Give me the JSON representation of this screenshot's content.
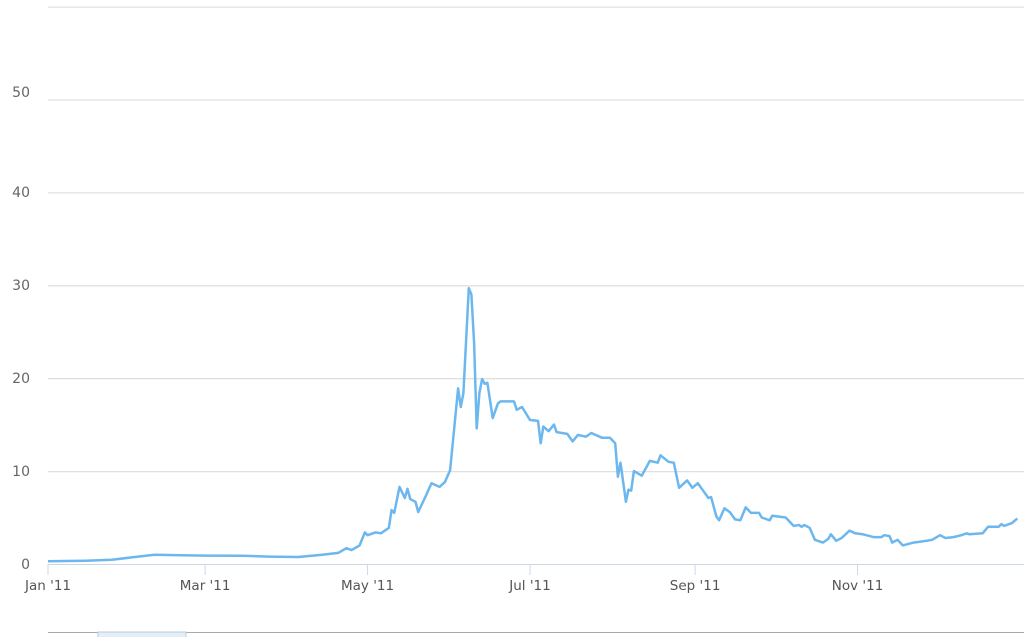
{
  "chart_data": {
    "type": "line",
    "title": "",
    "xlabel": "",
    "ylabel": "",
    "ylim": [
      0,
      60
    ],
    "xlim": [
      "2011-01-01",
      "2011-12-31"
    ],
    "grid": true,
    "legend": "none",
    "line_color": "#6cb8ee",
    "y_ticks": [
      "0",
      "10",
      "20",
      "30",
      "40",
      "50"
    ],
    "x_ticks": [
      {
        "date": "2011-01-01",
        "label": "Jan '11"
      },
      {
        "date": "2011-03-01",
        "label": "Mar '11"
      },
      {
        "date": "2011-05-01",
        "label": "May '11"
      },
      {
        "date": "2011-07-01",
        "label": "Jul '11"
      },
      {
        "date": "2011-09-01",
        "label": "Sep '11"
      },
      {
        "date": "2011-11-01",
        "label": "Nov '11"
      }
    ],
    "series": [
      {
        "points": [
          [
            "2011-01-01",
            0.3
          ],
          [
            "2011-01-15",
            0.35
          ],
          [
            "2011-01-25",
            0.45
          ],
          [
            "2011-02-01",
            0.7
          ],
          [
            "2011-02-10",
            1.0
          ],
          [
            "2011-02-20",
            0.95
          ],
          [
            "2011-03-01",
            0.9
          ],
          [
            "2011-03-15",
            0.88
          ],
          [
            "2011-03-25",
            0.8
          ],
          [
            "2011-04-05",
            0.75
          ],
          [
            "2011-04-14",
            1.0
          ],
          [
            "2011-04-20",
            1.2
          ],
          [
            "2011-04-23",
            1.7
          ],
          [
            "2011-04-25",
            1.5
          ],
          [
            "2011-04-28",
            2.0
          ],
          [
            "2011-04-30",
            3.4
          ],
          [
            "2011-05-01",
            3.1
          ],
          [
            "2011-05-04",
            3.4
          ],
          [
            "2011-05-06",
            3.3
          ],
          [
            "2011-05-09",
            3.9
          ],
          [
            "2011-05-10",
            5.8
          ],
          [
            "2011-05-11",
            5.5
          ],
          [
            "2011-05-13",
            8.3
          ],
          [
            "2011-05-15",
            7.1
          ],
          [
            "2011-05-16",
            8.1
          ],
          [
            "2011-05-17",
            7.0
          ],
          [
            "2011-05-19",
            6.7
          ],
          [
            "2011-05-20",
            5.6
          ],
          [
            "2011-05-23",
            7.4
          ],
          [
            "2011-05-25",
            8.7
          ],
          [
            "2011-05-28",
            8.3
          ],
          [
            "2011-05-30",
            8.8
          ],
          [
            "2011-06-01",
            10.1
          ],
          [
            "2011-06-04",
            18.9
          ],
          [
            "2011-06-05",
            16.9
          ],
          [
            "2011-06-06",
            18.4
          ],
          [
            "2011-06-08",
            29.7
          ],
          [
            "2011-06-09",
            29.0
          ],
          [
            "2011-06-10",
            23.8
          ],
          [
            "2011-06-11",
            14.6
          ],
          [
            "2011-06-12",
            18.4
          ],
          [
            "2011-06-13",
            19.9
          ],
          [
            "2011-06-14",
            19.4
          ],
          [
            "2011-06-15",
            19.5
          ],
          [
            "2011-06-17",
            15.7
          ],
          [
            "2011-06-19",
            17.3
          ],
          [
            "2011-06-20",
            17.5
          ],
          [
            "2011-06-25",
            17.5
          ],
          [
            "2011-06-26",
            16.6
          ],
          [
            "2011-06-28",
            16.9
          ],
          [
            "2011-07-01",
            15.5
          ],
          [
            "2011-07-04",
            15.4
          ],
          [
            "2011-07-05",
            13.0
          ],
          [
            "2011-07-06",
            14.8
          ],
          [
            "2011-07-08",
            14.3
          ],
          [
            "2011-07-10",
            15.0
          ],
          [
            "2011-07-11",
            14.2
          ],
          [
            "2011-07-15",
            14.0
          ],
          [
            "2011-07-17",
            13.2
          ],
          [
            "2011-07-19",
            13.9
          ],
          [
            "2011-07-22",
            13.7
          ],
          [
            "2011-07-24",
            14.1
          ],
          [
            "2011-07-28",
            13.6
          ],
          [
            "2011-07-31",
            13.6
          ],
          [
            "2011-08-02",
            13.0
          ],
          [
            "2011-08-03",
            9.4
          ],
          [
            "2011-08-04",
            10.9
          ],
          [
            "2011-08-06",
            6.7
          ],
          [
            "2011-08-07",
            8.0
          ],
          [
            "2011-08-08",
            7.9
          ],
          [
            "2011-08-09",
            10.0
          ],
          [
            "2011-08-12",
            9.5
          ],
          [
            "2011-08-15",
            11.1
          ],
          [
            "2011-08-18",
            10.9
          ],
          [
            "2011-08-19",
            11.7
          ],
          [
            "2011-08-22",
            11.0
          ],
          [
            "2011-08-24",
            10.9
          ],
          [
            "2011-08-26",
            8.2
          ],
          [
            "2011-08-29",
            9.0
          ],
          [
            "2011-08-31",
            8.2
          ],
          [
            "2011-09-02",
            8.7
          ],
          [
            "2011-09-06",
            7.1
          ],
          [
            "2011-09-07",
            7.2
          ],
          [
            "2011-09-09",
            5.1
          ],
          [
            "2011-09-10",
            4.7
          ],
          [
            "2011-09-12",
            6.0
          ],
          [
            "2011-09-14",
            5.6
          ],
          [
            "2011-09-16",
            4.8
          ],
          [
            "2011-09-18",
            4.7
          ],
          [
            "2011-09-20",
            6.1
          ],
          [
            "2011-09-22",
            5.5
          ],
          [
            "2011-09-25",
            5.5
          ],
          [
            "2011-09-26",
            5.0
          ],
          [
            "2011-09-29",
            4.7
          ],
          [
            "2011-09-30",
            5.2
          ],
          [
            "2011-10-05",
            5.0
          ],
          [
            "2011-10-08",
            4.1
          ],
          [
            "2011-10-10",
            4.2
          ],
          [
            "2011-10-11",
            4.0
          ],
          [
            "2011-10-12",
            4.2
          ],
          [
            "2011-10-14",
            3.9
          ],
          [
            "2011-10-16",
            2.6
          ],
          [
            "2011-10-19",
            2.3
          ],
          [
            "2011-10-21",
            2.7
          ],
          [
            "2011-10-22",
            3.2
          ],
          [
            "2011-10-24",
            2.5
          ],
          [
            "2011-10-26",
            2.8
          ],
          [
            "2011-10-29",
            3.6
          ],
          [
            "2011-10-31",
            3.3
          ],
          [
            "2011-11-03",
            3.2
          ],
          [
            "2011-11-07",
            2.9
          ],
          [
            "2011-11-10",
            2.9
          ],
          [
            "2011-11-11",
            3.1
          ],
          [
            "2011-11-13",
            3.0
          ],
          [
            "2011-11-14",
            2.3
          ],
          [
            "2011-11-16",
            2.6
          ],
          [
            "2011-11-18",
            2.0
          ],
          [
            "2011-11-22",
            2.3
          ],
          [
            "2011-11-27",
            2.5
          ],
          [
            "2011-11-29",
            2.6
          ],
          [
            "2011-12-02",
            3.1
          ],
          [
            "2011-12-04",
            2.8
          ],
          [
            "2011-12-07",
            2.9
          ],
          [
            "2011-12-10",
            3.1
          ],
          [
            "2011-12-12",
            3.3
          ],
          [
            "2011-12-13",
            3.2
          ],
          [
            "2011-12-18",
            3.3
          ],
          [
            "2011-12-20",
            4.0
          ],
          [
            "2011-12-24",
            4.0
          ],
          [
            "2011-12-25",
            4.3
          ],
          [
            "2011-12-26",
            4.1
          ],
          [
            "2011-12-29",
            4.4
          ],
          [
            "2011-12-31",
            4.9
          ]
        ]
      }
    ]
  }
}
